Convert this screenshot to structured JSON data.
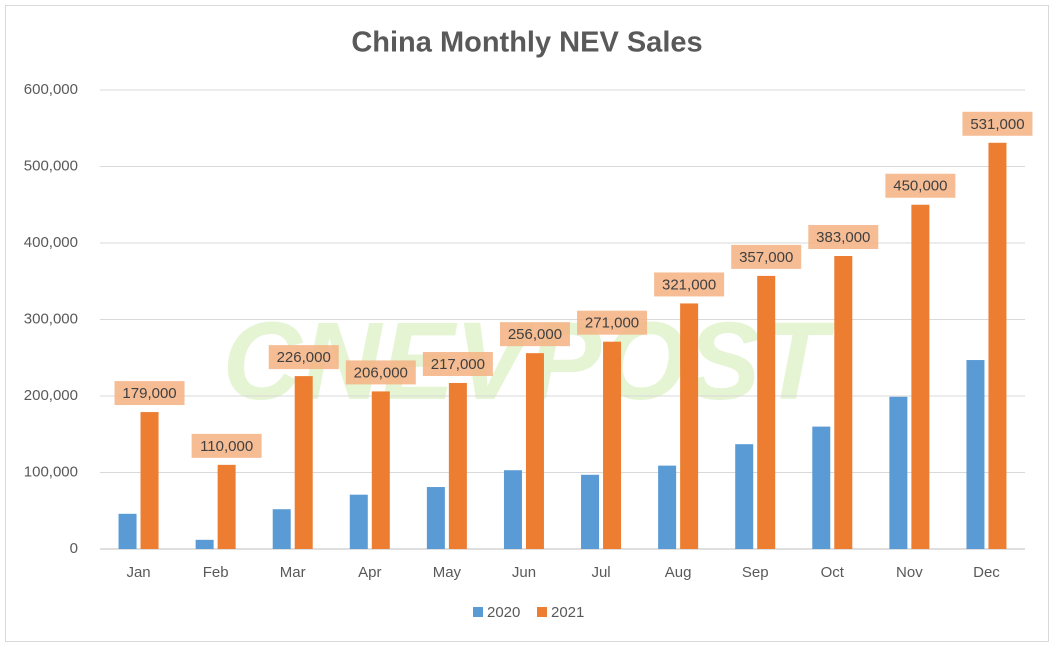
{
  "chart_data": {
    "type": "bar",
    "title": "China Monthly NEV Sales",
    "watermark": "CNEVPOST",
    "categories": [
      "Jan",
      "Feb",
      "Mar",
      "Apr",
      "May",
      "Jun",
      "Jul",
      "Aug",
      "Sep",
      "Oct",
      "Nov",
      "Dec"
    ],
    "series": [
      {
        "name": "2020",
        "color": "#5b9bd5",
        "values": [
          46000,
          12000,
          52000,
          71000,
          81000,
          103000,
          97000,
          109000,
          137000,
          160000,
          199000,
          247000
        ]
      },
      {
        "name": "2021",
        "color": "#ed7d31",
        "values": [
          179000,
          110000,
          226000,
          206000,
          217000,
          256000,
          271000,
          321000,
          357000,
          383000,
          450000,
          531000
        ],
        "value_labels": [
          "179,000",
          "110,000",
          "226,000",
          "206,000",
          "217,000",
          "256,000",
          "271,000",
          "321,000",
          "357,000",
          "383,000",
          "450,000",
          "531,000"
        ]
      }
    ],
    "ylim": [
      0,
      600000
    ],
    "yticks": [
      0,
      {
        "value": 100000,
        "label": "100,000"
      },
      {
        "value": 200000,
        "label": "200,000"
      },
      {
        "value": 300000,
        "label": "300,000"
      },
      {
        "value": 400000,
        "label": "400,000"
      },
      {
        "value": 500000,
        "label": "500,000"
      },
      {
        "value": 600000,
        "label": "600,000"
      }
    ],
    "grid": true,
    "legend": "bottom"
  }
}
